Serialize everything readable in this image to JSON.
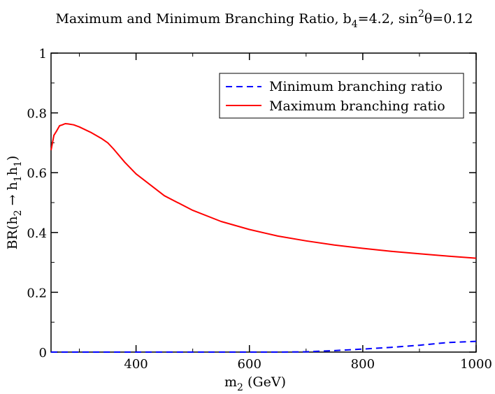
{
  "chart_data": {
    "type": "line",
    "title": {
      "prefix": "Maximum and Minimum Branching Ratio, b",
      "b_sub": "4",
      "b_value": "=4.2, sin",
      "sin_sup": "2",
      "theta_value": "θ=0.12"
    },
    "xlabel": {
      "main": "m",
      "sub": "2",
      "rest": " (GeV)"
    },
    "ylabel": {
      "p1": "BR(h",
      "s1": "2",
      "arrow": " → h",
      "s2": "1",
      "p3": "h",
      "s3": "1",
      "p4": ")"
    },
    "xlim": [
      250,
      1000
    ],
    "ylim": [
      0,
      1
    ],
    "x_ticks": [
      400,
      600,
      800,
      1000
    ],
    "x_tick_labels": [
      "400",
      "600",
      "800",
      "1000"
    ],
    "y_ticks": [
      0,
      0.2,
      0.4,
      0.6,
      0.8,
      1
    ],
    "y_tick_labels": [
      "0",
      "0.2",
      "0.4",
      "0.6",
      "0.8",
      "1"
    ],
    "legend_position": "top-right",
    "series": [
      {
        "name": "Minimum branching ratio",
        "color": "#0000ff",
        "style": "dashed",
        "x": [
          250,
          300,
          400,
          500,
          600,
          650,
          700,
          750,
          800,
          850,
          900,
          950,
          1000
        ],
        "y": [
          0.0,
          0.0,
          0.0,
          0.0,
          0.0,
          0.0,
          0.001,
          0.005,
          0.01,
          0.016,
          0.023,
          0.032,
          0.036
        ]
      },
      {
        "name": "Maximum branching ratio",
        "color": "#ff0000",
        "style": "solid",
        "x": [
          250,
          255,
          260,
          265,
          270,
          275,
          280,
          290,
          300,
          320,
          340,
          350,
          360,
          380,
          400,
          450,
          500,
          550,
          600,
          650,
          700,
          750,
          800,
          850,
          900,
          950,
          1000
        ],
        "y": [
          0.675,
          0.725,
          0.74,
          0.757,
          0.76,
          0.764,
          0.763,
          0.76,
          0.753,
          0.735,
          0.713,
          0.7,
          0.68,
          0.635,
          0.596,
          0.523,
          0.474,
          0.437,
          0.41,
          0.388,
          0.372,
          0.358,
          0.347,
          0.337,
          0.329,
          0.321,
          0.314
        ]
      }
    ]
  }
}
